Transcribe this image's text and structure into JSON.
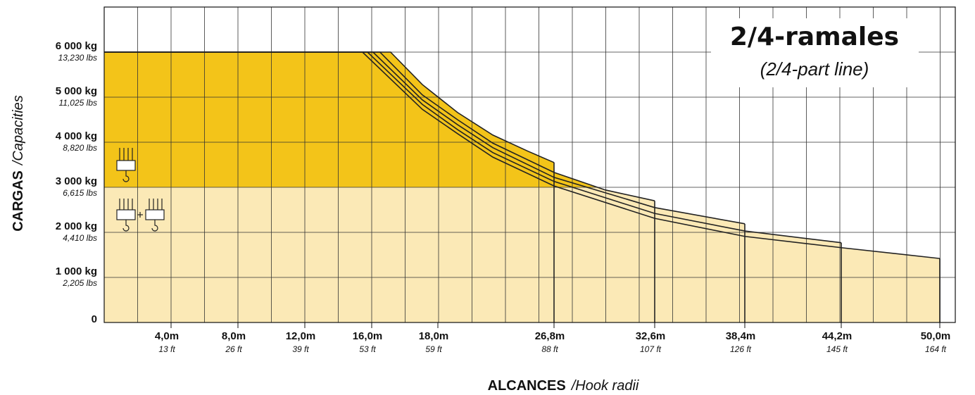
{
  "chart_data": {
    "type": "line",
    "title": "2/4-ramales",
    "subtitle": "(2/4-part line)",
    "x_label": "ALCANCES",
    "x_label_sub": "/Hook radii",
    "y_label": "CARGAS",
    "y_label_sub": "/Capacities",
    "xlim": [
      0,
      50.9
    ],
    "ylim": [
      0,
      7000
    ],
    "xticks": [
      {
        "value": 4.0,
        "label": "4,0m"
      },
      {
        "value": 8.0,
        "label": "8,0m"
      },
      {
        "value": 12.0,
        "label": "12,0m"
      },
      {
        "value": 16.0,
        "label": "16,0m"
      },
      {
        "value": 18.0,
        "label": "18,0m"
      },
      {
        "value": 26.8,
        "label": "26,8m"
      },
      {
        "value": 32.6,
        "label": "32,6m"
      },
      {
        "value": 38.4,
        "label": "38,4m"
      },
      {
        "value": 44.2,
        "label": "44,2m"
      },
      {
        "value": 50.0,
        "label": "50,0m"
      }
    ],
    "xtick_sublabels": [
      "13 ft",
      "26 ft",
      "39 ft",
      "53 ft",
      "59 ft",
      "88 ft",
      "107 ft",
      "126 ft",
      "145 ft",
      "164 ft"
    ],
    "yticks": [
      0,
      {
        "value": 1000,
        "label": "1 000 kg"
      },
      {
        "value": 2000,
        "label": "2 000 kg"
      },
      {
        "value": 3000,
        "label": "3 000 kg"
      },
      {
        "value": 4000,
        "label": "4 000 kg"
      },
      {
        "value": 5000,
        "label": "5 000 kg"
      },
      {
        "value": 6000,
        "label": "6 000 kg"
      }
    ],
    "ytick_sublabels": [
      null,
      "2,205 lbs",
      "4,410 lbs",
      "6,615 lbs",
      "8,820 lbs",
      "11,025 lbs",
      "13,230 lbs"
    ],
    "grid": true,
    "area_color": "#fbe9b6",
    "band": {
      "ymin": 3000,
      "color": "#f3c419"
    },
    "series": [
      {
        "color": "#222222",
        "x": [
          0,
          16.57,
          17.53,
          19.49,
          22.16,
          24.83,
          26.8
        ],
        "values": [
          6000,
          6000,
          5280,
          4660,
          4160,
          3800,
          3550
        ]
      },
      {
        "color": "#222222",
        "x": [
          0,
          16.25,
          17.53,
          19.49,
          22.16,
          26.8,
          29.76,
          32.6
        ],
        "values": [
          6000,
          6000,
          5050,
          4500,
          3980,
          3330,
          2940,
          2700
        ]
      },
      {
        "color": "#222222",
        "x": [
          0,
          16.04,
          17.53,
          19.49,
          22.16,
          26.8,
          32.6,
          38.4
        ],
        "values": [
          6000,
          6000,
          4940,
          4390,
          3880,
          3220,
          2550,
          2190
        ]
      },
      {
        "color": "#222222",
        "x": [
          0,
          15.75,
          17.53,
          19.49,
          22.16,
          26.8,
          32.6,
          38.4,
          44.2
        ],
        "values": [
          6000,
          6000,
          4840,
          4280,
          3770,
          3130,
          2420,
          2030,
          1770
        ]
      },
      {
        "color": "#222222",
        "x": [
          0,
          15.45,
          17.53,
          19.49,
          22.16,
          26.8,
          32.6,
          38.4,
          44.2,
          50.0
        ],
        "values": [
          6000,
          6000,
          4730,
          4190,
          3670,
          3030,
          2310,
          1910,
          1660,
          1420
        ]
      }
    ]
  }
}
